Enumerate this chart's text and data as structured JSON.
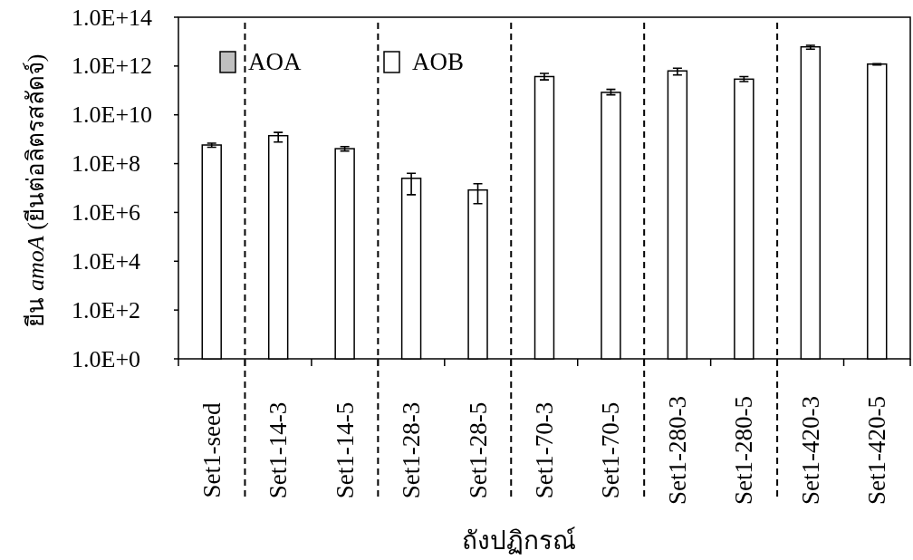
{
  "chart_data": {
    "type": "bar",
    "xlabel": "ถังปฏิกรณ์",
    "ylabel": "ยีน *amoA* (ยีนต่อลิตรสลัดจ์)",
    "categories": [
      "Set1-seed",
      "Set1-14-3",
      "Set1-14-5",
      "Set1-28-3",
      "Set1-28-5",
      "Set1-70-3",
      "Set1-70-5",
      "Set1-280-3",
      "Set1-280-5",
      "Set1-420-3",
      "Set1-420-5"
    ],
    "series": [
      {
        "name": "AOA",
        "color": "#c0c0c0",
        "values": [
          null,
          null,
          null,
          null,
          null,
          null,
          null,
          null,
          null,
          null,
          null
        ]
      },
      {
        "name": "AOB",
        "color": "#ffffff",
        "values": [
          580000000.0,
          1400000000.0,
          410000000.0,
          25000000.0,
          8300000.0,
          370000000000.0,
          83000000000.0,
          630000000000.0,
          290000000000.0,
          6100000000000.0,
          1200000000000.0
        ],
        "errors": [
          [
            470000000.0,
            690000000.0
          ],
          [
            770000000.0,
            1900000000.0
          ],
          [
            330000000.0,
            500000000.0
          ],
          [
            5300000.0,
            40000000.0
          ],
          [
            2300000.0,
            15000000.0
          ],
          [
            270000000000.0,
            500000000000.0
          ],
          [
            66000000000.0,
            110000000000.0
          ],
          [
            430000000000.0,
            810000000000.0
          ],
          [
            230000000000.0,
            370000000000.0
          ],
          [
            4900000000000.0,
            7100000000000.0
          ],
          [
            1100000000000.0,
            1250000000000.0
          ]
        ]
      }
    ],
    "ylim": [
      1,
      100000000000000.0
    ],
    "yticks": [
      {
        "value": 1,
        "label": "1.0E+0"
      },
      {
        "value": 100.0,
        "label": "1.0E+2"
      },
      {
        "value": 10000.0,
        "label": "1.0E+4"
      },
      {
        "value": 1000000.0,
        "label": "1.0E+6"
      },
      {
        "value": 100000000.0,
        "label": "1.0E+8"
      },
      {
        "value": 10000000000.0,
        "label": "1.0E+10"
      },
      {
        "value": 1000000000000.0,
        "label": "1.0E+12"
      },
      {
        "value": 100000000000000.0,
        "label": "1.0E+14"
      }
    ],
    "log": "y",
    "legend": "top left",
    "grid": false
  }
}
